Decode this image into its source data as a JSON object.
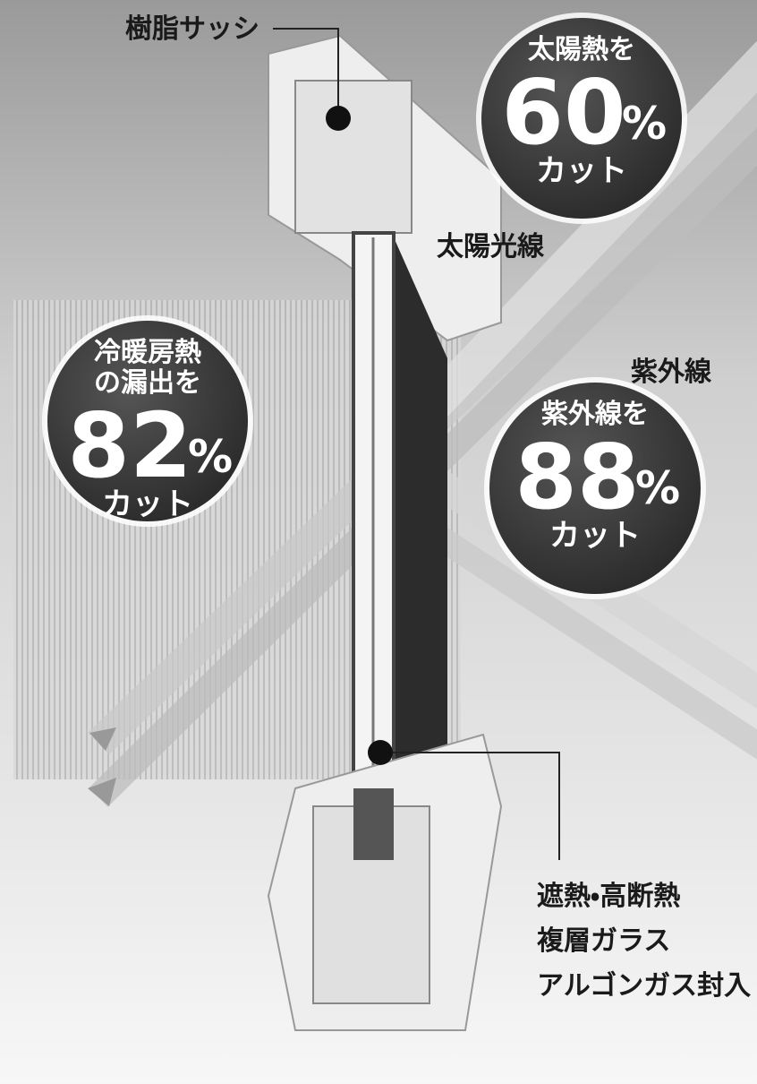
{
  "labels": {
    "sash": "樹脂サッシ",
    "sunlight": "太陽光線",
    "uv": "紫外線",
    "glass": [
      "遮熱・高断熱",
      "複層ガラス",
      "アルゴンガス封入"
    ]
  },
  "badges": [
    {
      "top": [
        "太陽熱を"
      ],
      "value": 60,
      "unit": "%",
      "bottom": "カット"
    },
    {
      "top": [
        "冷暖房熱",
        "の漏出を"
      ],
      "value": 82,
      "unit": "%",
      "bottom": "カット"
    },
    {
      "top": [
        "紫外線を"
      ],
      "value": 88,
      "unit": "%",
      "bottom": "カット"
    }
  ]
}
